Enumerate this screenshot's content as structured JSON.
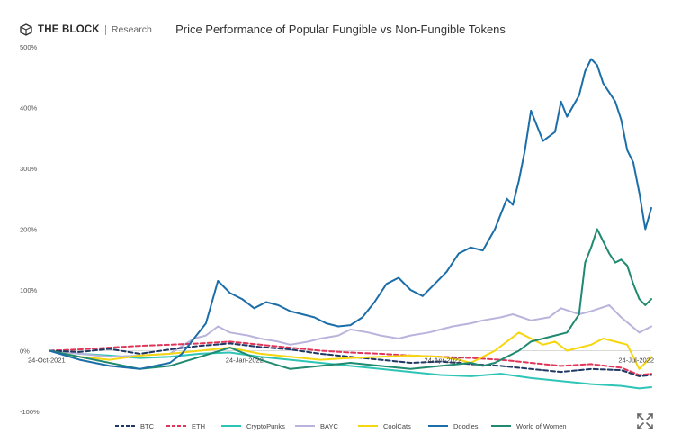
{
  "brand": {
    "name": "THE BLOCK",
    "sub": "Research"
  },
  "chart_data": {
    "type": "line",
    "title": "Price Performance of Popular Fungible vs Non-Fungible Tokens",
    "ylim": [
      -100,
      500
    ],
    "yticks": [
      {
        "value": 500,
        "label": "500%"
      },
      {
        "value": 400,
        "label": "400%"
      },
      {
        "value": 300,
        "label": "300%"
      },
      {
        "value": 200,
        "label": "200%"
      },
      {
        "value": 100,
        "label": "100%"
      },
      {
        "value": 0,
        "label": "0%"
      },
      {
        "value": -100,
        "label": "-100%"
      }
    ],
    "xlim": [
      0,
      100
    ],
    "xticks": [
      {
        "x": 0,
        "label": "24-Oct-2021"
      },
      {
        "x": 33,
        "label": "24-Jan-2022"
      },
      {
        "x": 66,
        "label": "24-Apr-2022"
      },
      {
        "x": 99,
        "label": "24-Jul-2022"
      }
    ],
    "grid": false,
    "legend": "bottom",
    "series": [
      {
        "name": "BTC",
        "color": "#1f3864",
        "dash": "5,3",
        "x": [
          0,
          5,
          10,
          15,
          20,
          25,
          30,
          35,
          40,
          45,
          50,
          55,
          60,
          65,
          70,
          75,
          80,
          85,
          90,
          95,
          98,
          100
        ],
        "y": [
          0,
          -2,
          3,
          -5,
          2,
          8,
          12,
          6,
          2,
          -5,
          -10,
          -15,
          -20,
          -18,
          -22,
          -25,
          -30,
          -35,
          -30,
          -32,
          -42,
          -40
        ]
      },
      {
        "name": "ETH",
        "color": "#e0365a",
        "dash": "5,3",
        "x": [
          0,
          5,
          10,
          15,
          20,
          25,
          30,
          35,
          40,
          45,
          50,
          55,
          60,
          65,
          70,
          75,
          80,
          85,
          90,
          95,
          98,
          100
        ],
        "y": [
          0,
          2,
          5,
          8,
          10,
          12,
          15,
          10,
          5,
          0,
          -3,
          -5,
          -8,
          -10,
          -12,
          -15,
          -20,
          -25,
          -22,
          -28,
          -40,
          -38
        ]
      },
      {
        "name": "CryptoPunks",
        "color": "#2ec4b6",
        "dash": "",
        "x": [
          0,
          5,
          10,
          15,
          20,
          25,
          30,
          35,
          40,
          45,
          50,
          55,
          60,
          65,
          70,
          75,
          80,
          85,
          90,
          95,
          98,
          100
        ],
        "y": [
          0,
          -5,
          -8,
          -12,
          -10,
          -5,
          -3,
          -10,
          -15,
          -20,
          -25,
          -30,
          -35,
          -40,
          -42,
          -38,
          -45,
          -50,
          -55,
          -58,
          -62,
          -60
        ]
      },
      {
        "name": "BAYC",
        "color": "#b9b4dc",
        "dash": "",
        "x": [
          0,
          5,
          10,
          15,
          20,
          24,
          26,
          28,
          30,
          33,
          35,
          38,
          40,
          43,
          45,
          48,
          50,
          53,
          55,
          58,
          60,
          63,
          65,
          67,
          70,
          72,
          75,
          77,
          80,
          83,
          85,
          88,
          90,
          93,
          95,
          98,
          100
        ],
        "y": [
          0,
          -5,
          -10,
          -8,
          -5,
          20,
          25,
          40,
          30,
          25,
          20,
          15,
          10,
          15,
          20,
          25,
          35,
          30,
          25,
          20,
          25,
          30,
          35,
          40,
          45,
          50,
          55,
          60,
          50,
          55,
          70,
          60,
          65,
          75,
          55,
          30,
          40
        ]
      },
      {
        "name": "CoolCats",
        "color": "#f5d60f",
        "dash": "",
        "x": [
          0,
          5,
          10,
          15,
          20,
          25,
          30,
          35,
          40,
          45,
          50,
          55,
          60,
          65,
          68,
          70,
          72,
          74,
          76,
          78,
          80,
          82,
          84,
          86,
          88,
          90,
          92,
          94,
          96,
          98,
          100
        ],
        "y": [
          0,
          -10,
          -15,
          -8,
          -5,
          0,
          5,
          -5,
          -10,
          -15,
          -12,
          -10,
          -8,
          -10,
          -15,
          -20,
          -10,
          0,
          15,
          30,
          20,
          10,
          15,
          0,
          5,
          10,
          20,
          15,
          10,
          -30,
          -10
        ]
      },
      {
        "name": "Doodles",
        "color": "#1b6ea8",
        "dash": "",
        "x": [
          0,
          5,
          10,
          15,
          20,
          22,
          24,
          26,
          28,
          30,
          32,
          34,
          36,
          38,
          40,
          42,
          44,
          46,
          48,
          50,
          52,
          54,
          56,
          58,
          60,
          62,
          64,
          66,
          68,
          70,
          72,
          74,
          76,
          77,
          78,
          79,
          80,
          82,
          84,
          85,
          86,
          88,
          89,
          90,
          91,
          92,
          93,
          94,
          95,
          96,
          97,
          98,
          99,
          100
        ],
        "y": [
          0,
          -15,
          -25,
          -30,
          -20,
          -5,
          20,
          45,
          115,
          95,
          85,
          70,
          80,
          75,
          65,
          60,
          55,
          45,
          40,
          42,
          55,
          80,
          110,
          120,
          100,
          90,
          110,
          130,
          160,
          170,
          165,
          200,
          250,
          240,
          280,
          330,
          395,
          345,
          360,
          410,
          385,
          420,
          460,
          480,
          470,
          440,
          425,
          410,
          380,
          330,
          310,
          260,
          200,
          235
        ]
      },
      {
        "name": "World of Women",
        "color": "#1f8a70",
        "dash": "",
        "x": [
          0,
          5,
          10,
          15,
          20,
          25,
          30,
          35,
          40,
          45,
          50,
          55,
          60,
          65,
          70,
          72,
          74,
          76,
          78,
          80,
          82,
          84,
          86,
          88,
          89,
          90,
          91,
          92,
          93,
          94,
          95,
          96,
          97,
          98,
          99,
          100
        ],
        "y": [
          0,
          -10,
          -20,
          -30,
          -25,
          -10,
          5,
          -15,
          -30,
          -25,
          -20,
          -25,
          -30,
          -25,
          -20,
          -25,
          -20,
          -10,
          0,
          15,
          20,
          25,
          30,
          60,
          145,
          170,
          200,
          180,
          160,
          145,
          150,
          140,
          110,
          85,
          75,
          85
        ]
      }
    ]
  }
}
